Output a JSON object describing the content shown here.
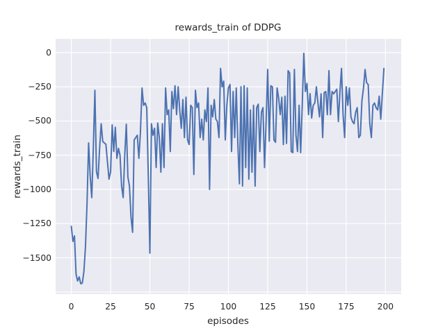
{
  "chart_data": {
    "type": "line",
    "title": "rewards_train of DDPG",
    "xlabel": "episodes",
    "ylabel": "rewards_train",
    "legend_position": "none",
    "grid": true,
    "style": "seaborn-darkgrid",
    "axes_bg_color": "#EAEAF2",
    "grid_color": "#FFFFFF",
    "line_color": "#4C72B0",
    "text_color": "#262626",
    "xlim": [
      -10,
      210
    ],
    "ylim": [
      -1766,
      101
    ],
    "xticks": [
      0,
      25,
      50,
      75,
      100,
      125,
      150,
      175,
      200
    ],
    "xtick_labels": [
      "0",
      "25",
      "50",
      "75",
      "100",
      "125",
      "150",
      "175",
      "200"
    ],
    "yticks": [
      0,
      -250,
      -500,
      -750,
      -1000,
      -1250,
      -1500
    ],
    "ytick_labels": [
      "0",
      "−250",
      "−500",
      "−750",
      "−1000",
      "−1250",
      "−1500"
    ],
    "ygrid_extra": [
      -1750
    ],
    "x_start": 0,
    "x_step": 1,
    "n_points": 200,
    "values": [
      -1270,
      -1380,
      -1340,
      -1620,
      -1670,
      -1640,
      -1690,
      -1685,
      -1600,
      -1420,
      -1100,
      -660,
      -900,
      -1060,
      -700,
      -275,
      -870,
      -920,
      -700,
      -520,
      -650,
      -660,
      -670,
      -800,
      -925,
      -870,
      -528,
      -723,
      -545,
      -773,
      -700,
      -750,
      -976,
      -1060,
      -750,
      -523,
      -908,
      -976,
      -1204,
      -1314,
      -638,
      -621,
      -604,
      -773,
      -579,
      -258,
      -385,
      -368,
      -402,
      -908,
      -1466,
      -520,
      -604,
      -553,
      -840,
      -515,
      -621,
      -874,
      -520,
      -840,
      -258,
      -453,
      -419,
      -723,
      -284,
      -410,
      -242,
      -453,
      -250,
      -419,
      -553,
      -343,
      -621,
      -326,
      -638,
      -672,
      -385,
      -402,
      -891,
      -275,
      -402,
      -368,
      -621,
      -486,
      -638,
      -419,
      -504,
      -258,
      -1000,
      -385,
      -470,
      -343,
      -486,
      -504,
      -621,
      -115,
      -250,
      -208,
      -638,
      -385,
      -258,
      -233,
      -723,
      -284,
      -621,
      -258,
      -664,
      -959,
      -250,
      -976,
      -242,
      -840,
      -258,
      -925,
      -419,
      -874,
      -385,
      -976,
      -402,
      -377,
      -723,
      -436,
      -402,
      -840,
      -500,
      -123,
      -647,
      -242,
      -250,
      -638,
      -655,
      -258,
      -334,
      -453,
      -326,
      -672,
      -318,
      -664,
      -132,
      -149,
      -723,
      -731,
      -123,
      -604,
      -723,
      -385,
      -731,
      -385,
      -5,
      -284,
      -225,
      -453,
      -300,
      -478,
      -385,
      -368,
      -250,
      -368,
      -470,
      -301,
      -621,
      -292,
      -284,
      -453,
      -132,
      -453,
      -284,
      -301,
      -284,
      -267,
      -504,
      -284,
      -115,
      -453,
      -621,
      -250,
      -385,
      -258,
      -470,
      -504,
      -520,
      -436,
      -402,
      -621,
      -604,
      -351,
      -258,
      -123,
      -220,
      -233,
      -520,
      -621,
      -385,
      -368,
      -402,
      -419,
      -318,
      -486,
      -301,
      -115
    ]
  }
}
